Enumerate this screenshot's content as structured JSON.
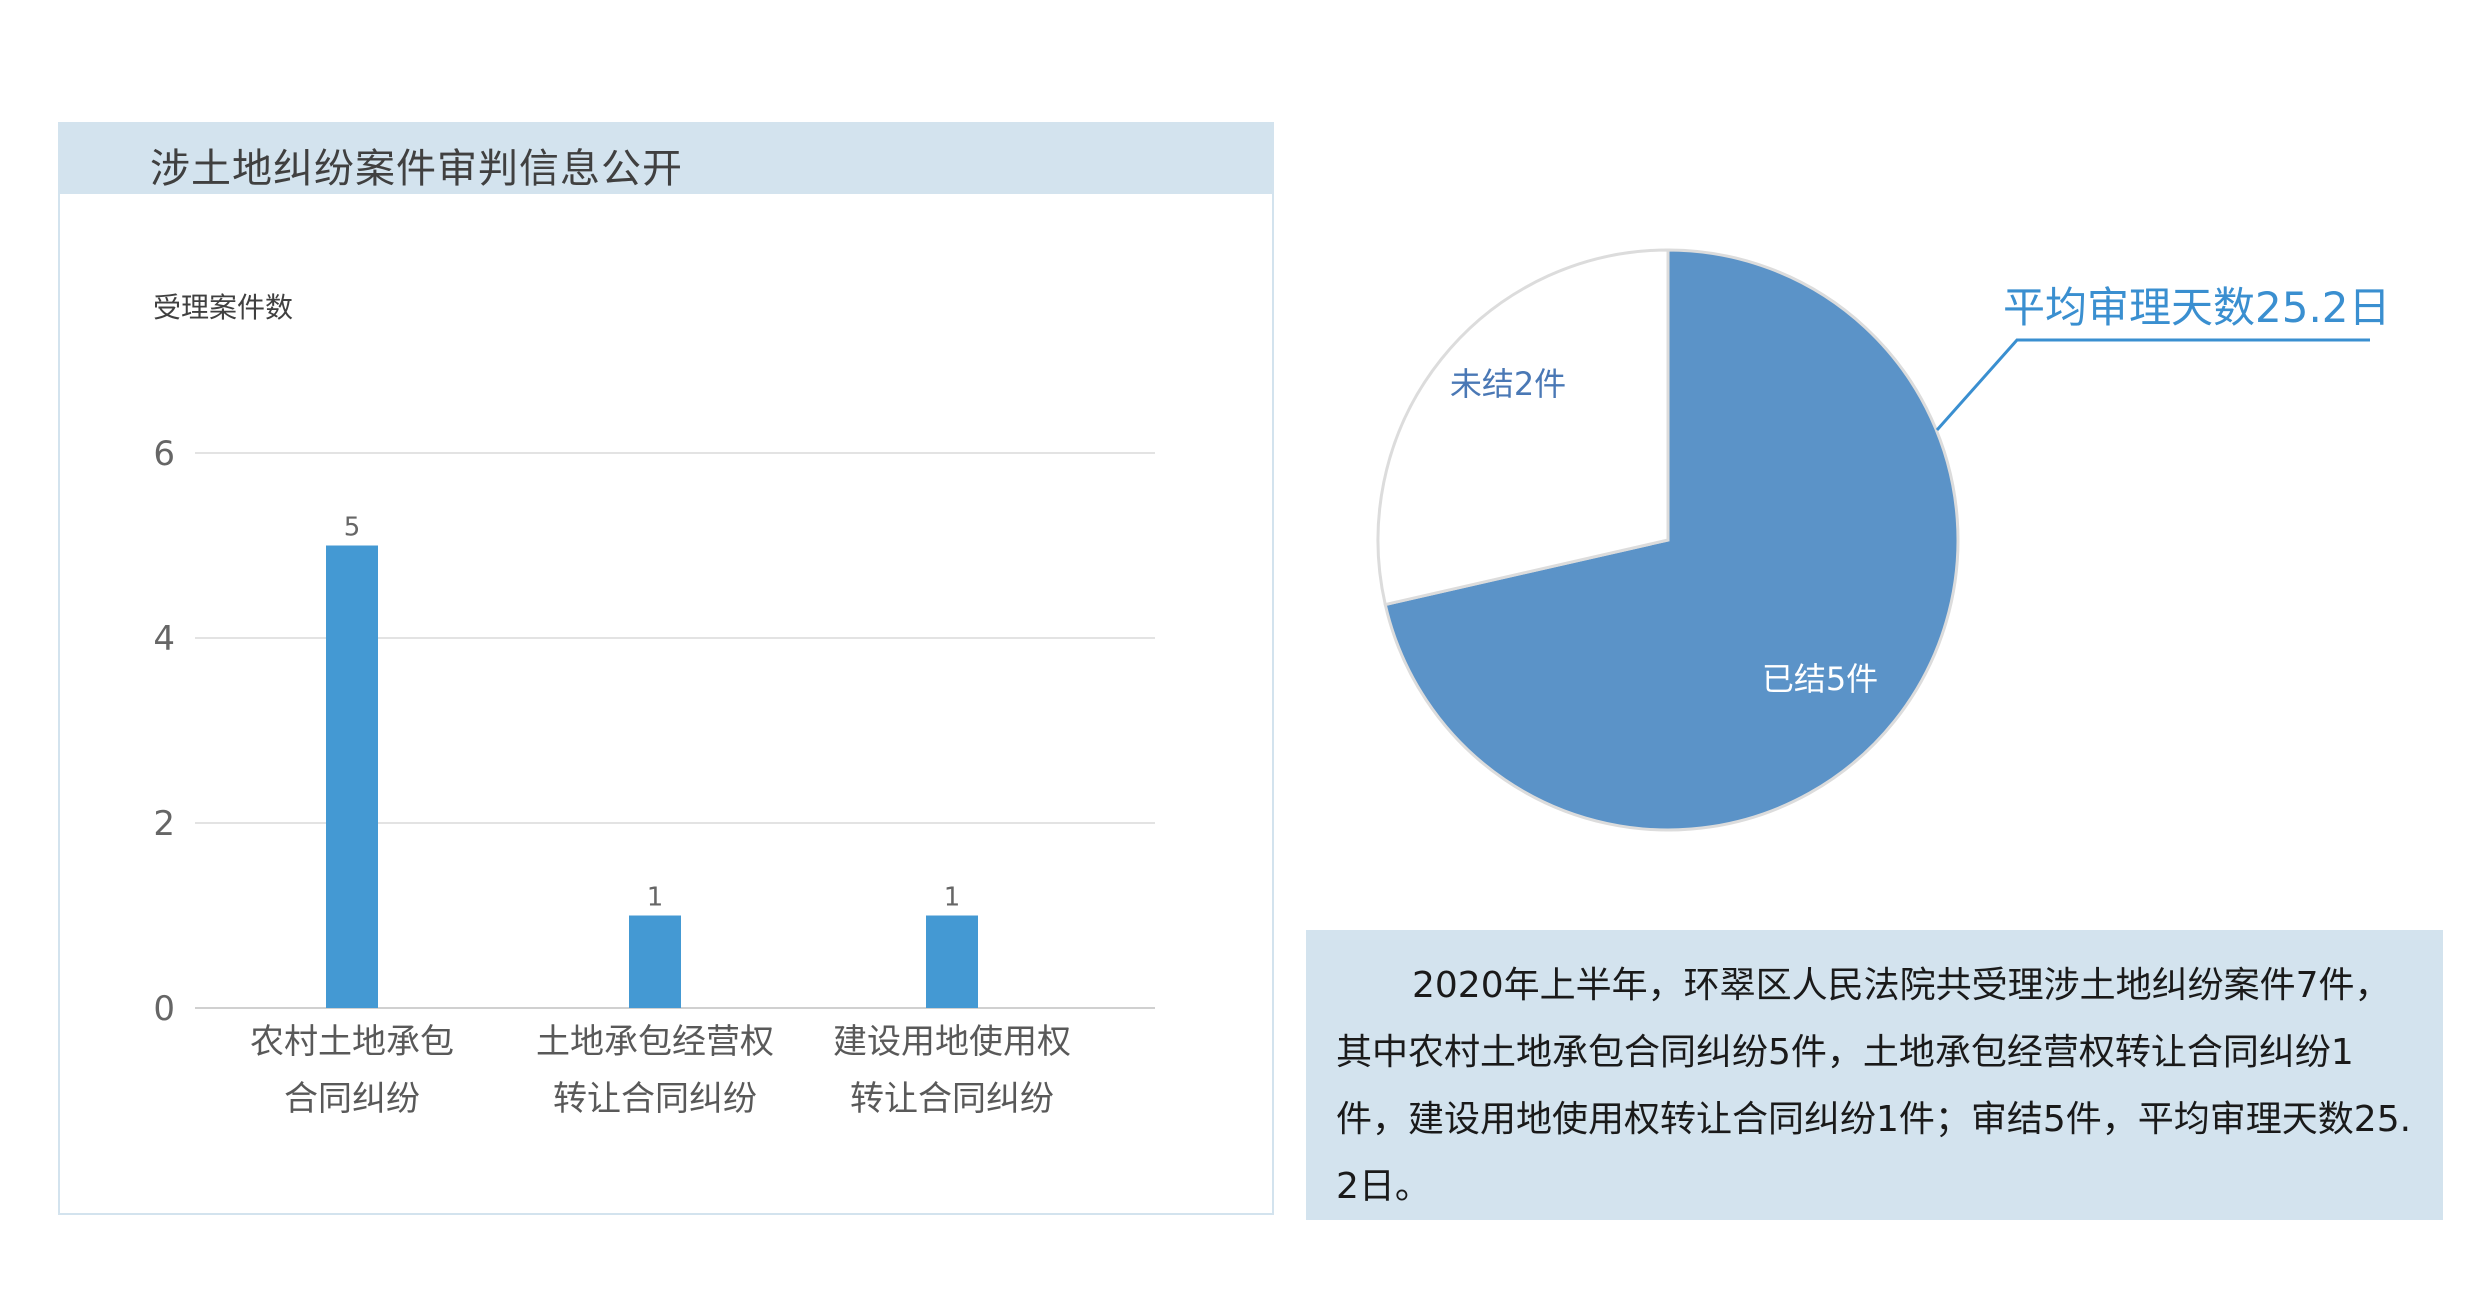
{
  "panel": {
    "title": "涉土地纠纷案件审判信息公开"
  },
  "chart_data": [
    {
      "type": "bar",
      "ylabel": "受理案件数",
      "categories": [
        [
          "农村土地承包",
          "合同纠纷"
        ],
        [
          "土地承包经营权",
          "转让合同纠纷"
        ],
        [
          "建设用地使用权",
          "转让合同纠纷"
        ]
      ],
      "values": [
        5,
        1,
        1
      ],
      "ylim": [
        0,
        6
      ],
      "yticks": [
        0,
        2,
        4,
        6
      ],
      "grid": true,
      "color": "#4499d3"
    },
    {
      "type": "pie",
      "slices": [
        {
          "label": "已结5件",
          "value": 5,
          "color": "#5b93c8"
        },
        {
          "label": "未结2件",
          "value": 2,
          "color": "#ffffff"
        }
      ],
      "annotation": "平均审理天数25.2日",
      "annotation_color": "#3a8fd0"
    }
  ],
  "summary": {
    "text": "2020年上半年，环翠区人民法院共受理涉土地纠纷案件7件，其中农村土地承包合同纠纷5件，土地承包经营权转让合同纠纷1件，建设用地使用权转让合同纠纷1件；审结5件，平均审理天数25.2日。"
  }
}
